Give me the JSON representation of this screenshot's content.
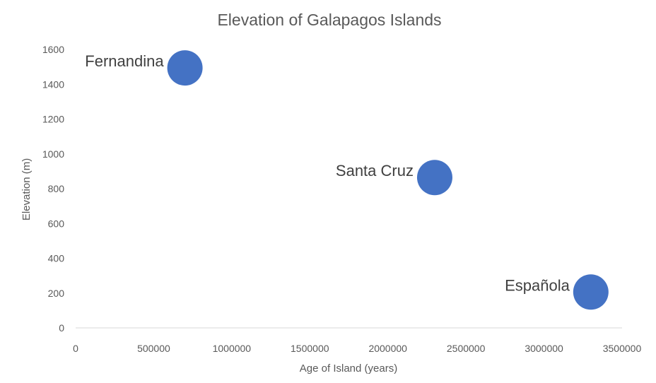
{
  "chart_data": {
    "type": "scatter",
    "title": "Elevation of Galapagos Islands",
    "xlabel": "Age of Island (years)",
    "ylabel": "Elevation (m)",
    "xlim": [
      0,
      3500000
    ],
    "ylim": [
      0,
      1600
    ],
    "x_ticks": [
      "0",
      "500000",
      "1000000",
      "1500000",
      "2000000",
      "2500000",
      "3000000",
      "3500000"
    ],
    "y_ticks": [
      "0",
      "200",
      "400",
      "600",
      "800",
      "1000",
      "1200",
      "1400",
      "1600"
    ],
    "grid": false,
    "legend": "none",
    "point_color": "#4472C4",
    "points": [
      {
        "label": "Fernandina",
        "x": 700000,
        "y": 1494
      },
      {
        "label": "Santa Cruz",
        "x": 2300000,
        "y": 864
      },
      {
        "label": "Española",
        "x": 3300000,
        "y": 206
      }
    ]
  }
}
